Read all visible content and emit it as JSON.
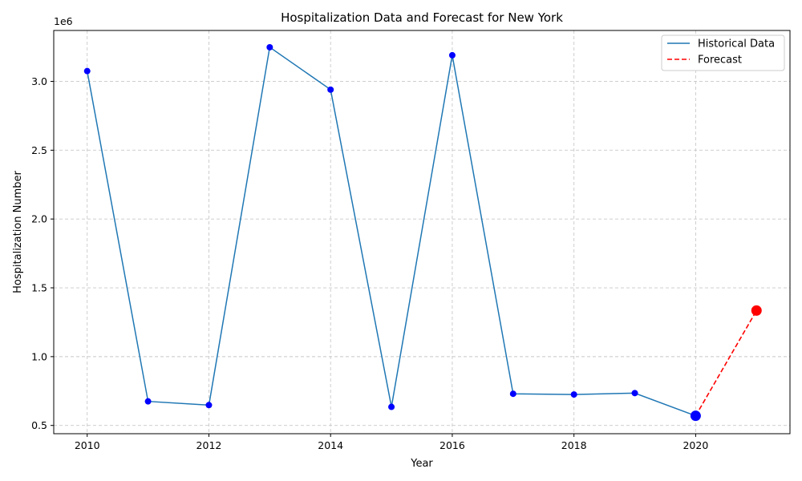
{
  "chart_data": {
    "type": "line",
    "title": "Hospitalization Data and Forecast for New York",
    "xlabel": "Year",
    "ylabel": "Hospitalization Number",
    "y_offset_label": "1e6",
    "xlim": [
      2009.45,
      2021.55
    ],
    "ylim": [
      440000,
      3370000
    ],
    "x_ticks": [
      2010,
      2012,
      2014,
      2016,
      2018,
      2020
    ],
    "y_ticks": [
      500000,
      1000000,
      1500000,
      2000000,
      2500000,
      3000000
    ],
    "y_tick_labels": [
      "0.5",
      "1.0",
      "1.5",
      "2.0",
      "2.5",
      "3.0"
    ],
    "grid": true,
    "legend_position": "top-right",
    "series": [
      {
        "name": "Historical Data",
        "style": "solid",
        "color": "#1f77b4",
        "marker_color": "#0000ff",
        "x": [
          2010,
          2011,
          2012,
          2013,
          2014,
          2015,
          2016,
          2017,
          2018,
          2019,
          2020
        ],
        "values": [
          3075000,
          675000,
          648000,
          3248000,
          2940000,
          635000,
          3190000,
          730000,
          725000,
          735000,
          570000
        ]
      },
      {
        "name": "Forecast",
        "style": "dashed",
        "color": "#ff0000",
        "marker_color": "#ff0000",
        "x": [
          2020,
          2021
        ],
        "values": [
          570000,
          1335000
        ]
      }
    ]
  }
}
